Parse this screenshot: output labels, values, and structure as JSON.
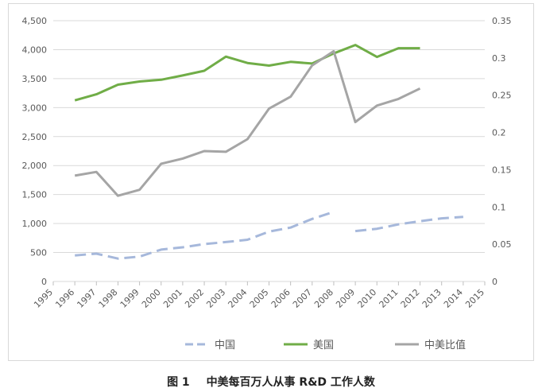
{
  "caption": {
    "figure_number": "图 1",
    "title": "中美每百万人从事 R&D 工作人数"
  },
  "chart_data": {
    "type": "line",
    "x": [
      1995,
      1996,
      1997,
      1998,
      1999,
      2000,
      2001,
      2002,
      2003,
      2004,
      2005,
      2006,
      2007,
      2008,
      2009,
      2010,
      2011,
      2012,
      2013,
      2014,
      2015
    ],
    "y_left_lim": [
      0,
      4500
    ],
    "y_left_ticks": [
      "0",
      "500",
      "1,000",
      "1,500",
      "2,000",
      "2,500",
      "3,000",
      "3,500",
      "4,000",
      "4,500"
    ],
    "y_right_lim": [
      0,
      0.35
    ],
    "y_right_ticks": [
      "0",
      "0.05",
      "0.1",
      "0.15",
      "0.2",
      "0.25",
      "0.3",
      "0.35"
    ],
    "grid": "horizontal",
    "legend_position": "bottom",
    "series": [
      {
        "name": "中国",
        "axis": "left",
        "color": "#a6b8db",
        "dash": "dashed",
        "x": [
          1996,
          1997,
          1998,
          1999,
          2000,
          2001,
          2002,
          2003,
          2004,
          2005,
          2006,
          2007,
          2008,
          null,
          2009,
          2010,
          2011,
          2012,
          2013,
          2014
        ],
        "values": [
          450,
          480,
          395,
          430,
          550,
          590,
          645,
          680,
          720,
          860,
          930,
          1080,
          1200,
          null,
          870,
          910,
          985,
          1040,
          1090,
          1115
        ]
      },
      {
        "name": "美国",
        "axis": "left",
        "color": "#70ad47",
        "dash": "solid",
        "x": [
          1996,
          1997,
          1998,
          1999,
          2000,
          2001,
          2002,
          2003,
          2004,
          2005,
          2006,
          2007,
          2008,
          2009,
          2010,
          2011,
          2012
        ],
        "values": [
          3125,
          3230,
          3395,
          3450,
          3480,
          3555,
          3635,
          3880,
          3770,
          3725,
          3790,
          3760,
          3935,
          4080,
          3875,
          4025,
          4025
        ]
      },
      {
        "name": "中美比值",
        "axis": "right",
        "color": "#a5a5a5",
        "dash": "solid",
        "x": [
          1996,
          1997,
          1998,
          1999,
          2000,
          2001,
          2002,
          2003,
          2004,
          2005,
          2006,
          2007,
          2008,
          2009,
          2010,
          2011,
          2012
        ],
        "values": [
          0.142,
          0.147,
          0.115,
          0.123,
          0.158,
          0.165,
          0.175,
          0.174,
          0.191,
          0.232,
          0.248,
          0.29,
          0.309,
          0.214,
          0.236,
          0.245,
          0.259
        ]
      }
    ]
  }
}
